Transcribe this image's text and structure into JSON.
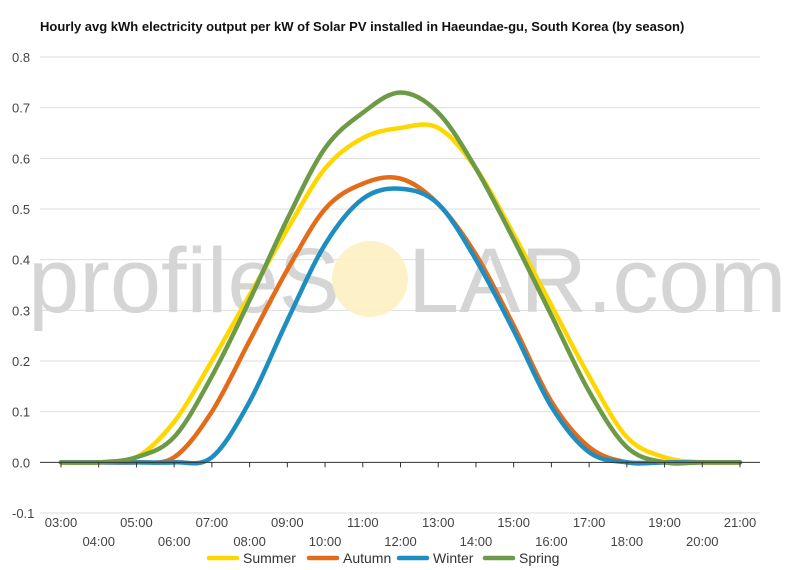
{
  "title": "Hourly avg kWh electricity output per kW of Solar PV installed in Haeundae-gu, South Korea (by season)",
  "watermark": {
    "left": "profileS",
    "right": "LAR.com"
  },
  "colors": {
    "Summer": "#ffd700",
    "Autumn": "#e36c1b",
    "Winter": "#1e8ec1",
    "Spring": "#6c9a47",
    "grid": "#dddddd",
    "zero_line": "#333333"
  },
  "chart_data": {
    "type": "line",
    "title": "Hourly avg kWh electricity output per kW of Solar PV installed in Haeundae-gu, South Korea (by season)",
    "xlabel": "",
    "ylabel": "",
    "ylim": [
      -0.1,
      0.8
    ],
    "yticks": [
      "-0.1",
      "0.0",
      "0.1",
      "0.2",
      "0.3",
      "0.4",
      "0.5",
      "0.6",
      "0.7",
      "0.8"
    ],
    "grid": true,
    "legend": "bottom",
    "x": [
      "03:00",
      "04:00",
      "05:00",
      "06:00",
      "07:00",
      "08:00",
      "09:00",
      "10:00",
      "11:00",
      "12:00",
      "13:00",
      "14:00",
      "15:00",
      "16:00",
      "17:00",
      "18:00",
      "19:00",
      "20:00",
      "21:00"
    ],
    "series": [
      {
        "name": "Summer",
        "values": [
          0.0,
          0.0,
          0.01,
          0.08,
          0.2,
          0.33,
          0.46,
          0.58,
          0.64,
          0.66,
          0.66,
          0.58,
          0.45,
          0.31,
          0.17,
          0.05,
          0.01,
          0.0,
          0.0
        ]
      },
      {
        "name": "Autumn",
        "values": [
          0.0,
          0.0,
          0.0,
          0.01,
          0.1,
          0.24,
          0.38,
          0.5,
          0.55,
          0.56,
          0.51,
          0.41,
          0.27,
          0.12,
          0.03,
          0.0,
          0.0,
          0.0,
          0.0
        ]
      },
      {
        "name": "Winter",
        "values": [
          0.0,
          0.0,
          0.0,
          0.0,
          0.01,
          0.12,
          0.28,
          0.43,
          0.52,
          0.54,
          0.51,
          0.4,
          0.26,
          0.11,
          0.02,
          0.0,
          0.0,
          0.0,
          0.0
        ]
      },
      {
        "name": "Spring",
        "values": [
          0.0,
          0.0,
          0.01,
          0.05,
          0.17,
          0.32,
          0.48,
          0.62,
          0.69,
          0.73,
          0.69,
          0.58,
          0.44,
          0.29,
          0.14,
          0.03,
          0.0,
          0.0,
          0.0
        ]
      }
    ]
  }
}
